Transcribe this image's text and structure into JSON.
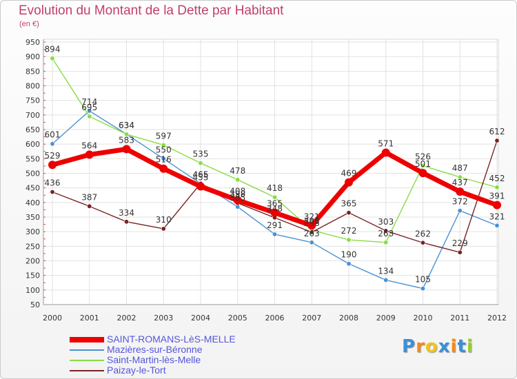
{
  "chart_data": {
    "type": "line",
    "title": "Evolution du Montant de la Dette par Habitant",
    "subtitle": "(en €)",
    "x": [
      "2000",
      "2001",
      "2002",
      "2003",
      "2004",
      "2005",
      "2006",
      "2007",
      "2008",
      "2009",
      "2010",
      "2011",
      "2012"
    ],
    "ylim": [
      50,
      950
    ],
    "yticks": [
      50,
      100,
      150,
      200,
      250,
      300,
      350,
      400,
      450,
      500,
      550,
      600,
      650,
      700,
      750,
      800,
      850,
      900,
      950
    ],
    "grid": true,
    "legend_position": "bottom-left",
    "series": [
      {
        "name": "SAINT-ROMANS-LèS-MELLE",
        "color": "#ee0000",
        "values": [
          529,
          564,
          583,
          516,
          455,
          408,
          365,
          321,
          469,
          571,
          501,
          437,
          391
        ]
      },
      {
        "name": "Mazières-sur-Béronne",
        "color": "#4a90d0",
        "values": [
          601,
          714,
          634,
          550,
          465,
          385,
          291,
          263,
          190,
          134,
          105,
          372,
          321
        ]
      },
      {
        "name": "Saint-Martin-lès-Melle",
        "color": "#88dd44",
        "values": [
          894,
          695,
          634,
          597,
          535,
          478,
          418,
          305,
          272,
          263,
          526,
          487,
          452
        ]
      },
      {
        "name": "Paizay-le-Tort",
        "color": "#772222",
        "values": [
          436,
          387,
          334,
          310,
          465,
          398,
          348,
          298,
          365,
          303,
          262,
          229,
          612
        ]
      }
    ]
  },
  "brand": {
    "letters": [
      "P",
      "r",
      "o",
      "x",
      "i",
      "t",
      "i"
    ],
    "colors": [
      "#3a8fd8",
      "#f28a1f",
      "#f2c21f",
      "#3a8fd8",
      "#f28a1f",
      "#3a8fd8",
      "#9acd32"
    ]
  }
}
